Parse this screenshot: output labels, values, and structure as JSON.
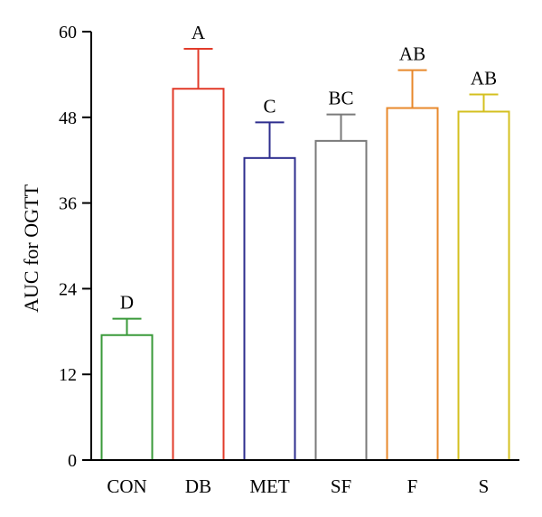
{
  "chart_data": {
    "type": "bar",
    "ylabel": "AUC for OGTT",
    "xlabel": "",
    "ylim": [
      0,
      60
    ],
    "yticks": [
      0,
      12,
      24,
      36,
      48,
      60
    ],
    "grid": false,
    "categories": [
      "CON",
      "DB",
      "MET",
      "SF",
      "F",
      "S"
    ],
    "values": [
      17.5,
      52,
      42.3,
      44.7,
      49.3,
      48.8
    ],
    "errors": [
      2.3,
      5.6,
      5.0,
      3.7,
      5.3,
      2.4
    ],
    "significance": [
      "D",
      "A",
      "C",
      "BC",
      "AB",
      "AB"
    ],
    "colors": [
      "#3a9a3a",
      "#e23b2a",
      "#2e2e8e",
      "#7a7a7a",
      "#e8892c",
      "#d4c020"
    ]
  }
}
